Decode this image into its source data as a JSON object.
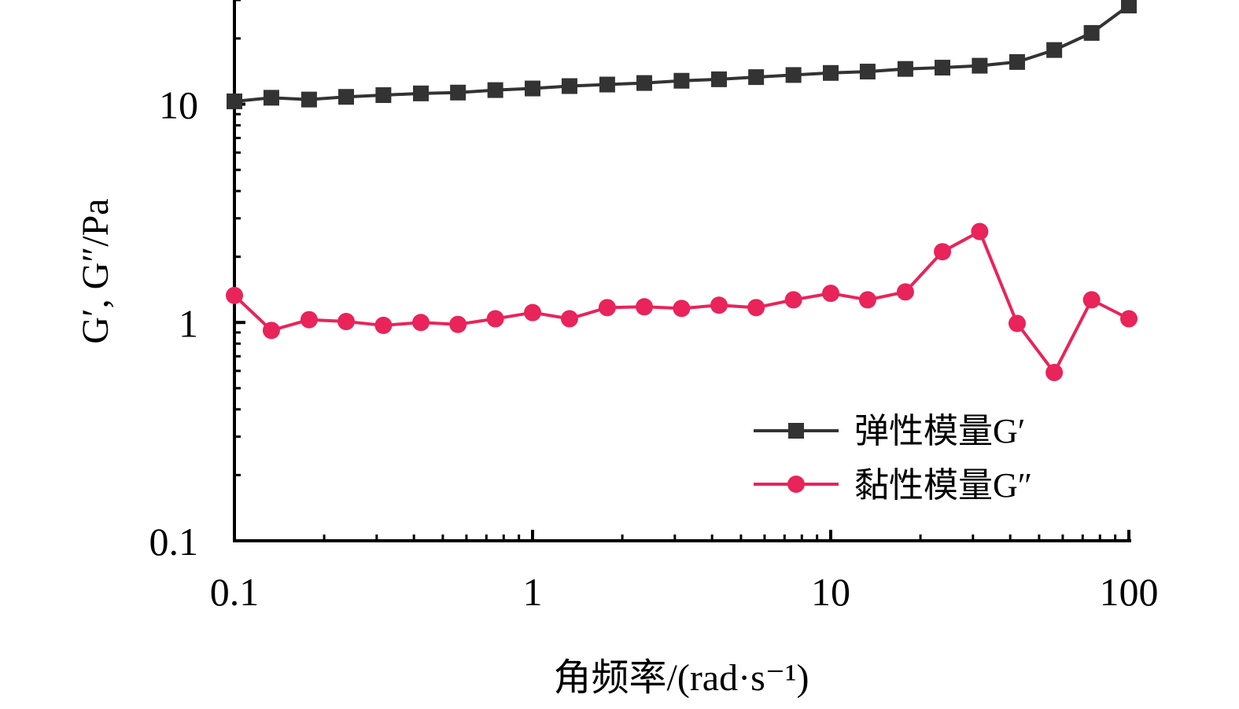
{
  "chart_data": {
    "type": "line",
    "title": "",
    "xlabel": "角频率/(rad·s⁻¹)",
    "ylabel": "G′, G″/Pa",
    "xscale": "log",
    "yscale": "log",
    "xlim": [
      0.1,
      100
    ],
    "ylim": [
      0.1,
      30
    ],
    "x_ticks": [
      {
        "value": 0.1,
        "label": "0.1"
      },
      {
        "value": 1,
        "label": "1"
      },
      {
        "value": 10,
        "label": "10"
      },
      {
        "value": 100,
        "label": "100"
      }
    ],
    "y_ticks": [
      {
        "value": 0.1,
        "label": "0.1"
      },
      {
        "value": 1,
        "label": "1"
      },
      {
        "value": 10,
        "label": "10"
      }
    ],
    "legend_position": "lower-right",
    "x": [
      0.1,
      0.133,
      0.178,
      0.237,
      0.316,
      0.422,
      0.562,
      0.75,
      1.0,
      1.33,
      1.78,
      2.37,
      3.16,
      4.22,
      5.62,
      7.5,
      10.0,
      13.3,
      17.8,
      23.7,
      31.6,
      42.2,
      56.2,
      75.0,
      100.0
    ],
    "series": [
      {
        "name": "弹性模量G′",
        "color": "#333333",
        "marker": "square",
        "values": [
          10.3,
          10.7,
          10.5,
          10.8,
          11.0,
          11.2,
          11.3,
          11.6,
          11.8,
          12.1,
          12.3,
          12.5,
          12.8,
          13.0,
          13.3,
          13.6,
          13.9,
          14.1,
          14.5,
          14.7,
          15.0,
          15.6,
          17.7,
          21.2,
          28.3
        ]
      },
      {
        "name": "黏性模量G″",
        "color": "#e8245a",
        "marker": "circle",
        "values": [
          1.33,
          0.92,
          1.03,
          1.01,
          0.97,
          1.0,
          0.98,
          1.04,
          1.11,
          1.04,
          1.17,
          1.18,
          1.16,
          1.2,
          1.17,
          1.27,
          1.36,
          1.27,
          1.38,
          2.11,
          2.61,
          0.99,
          0.59,
          1.27,
          1.04
        ]
      }
    ]
  }
}
